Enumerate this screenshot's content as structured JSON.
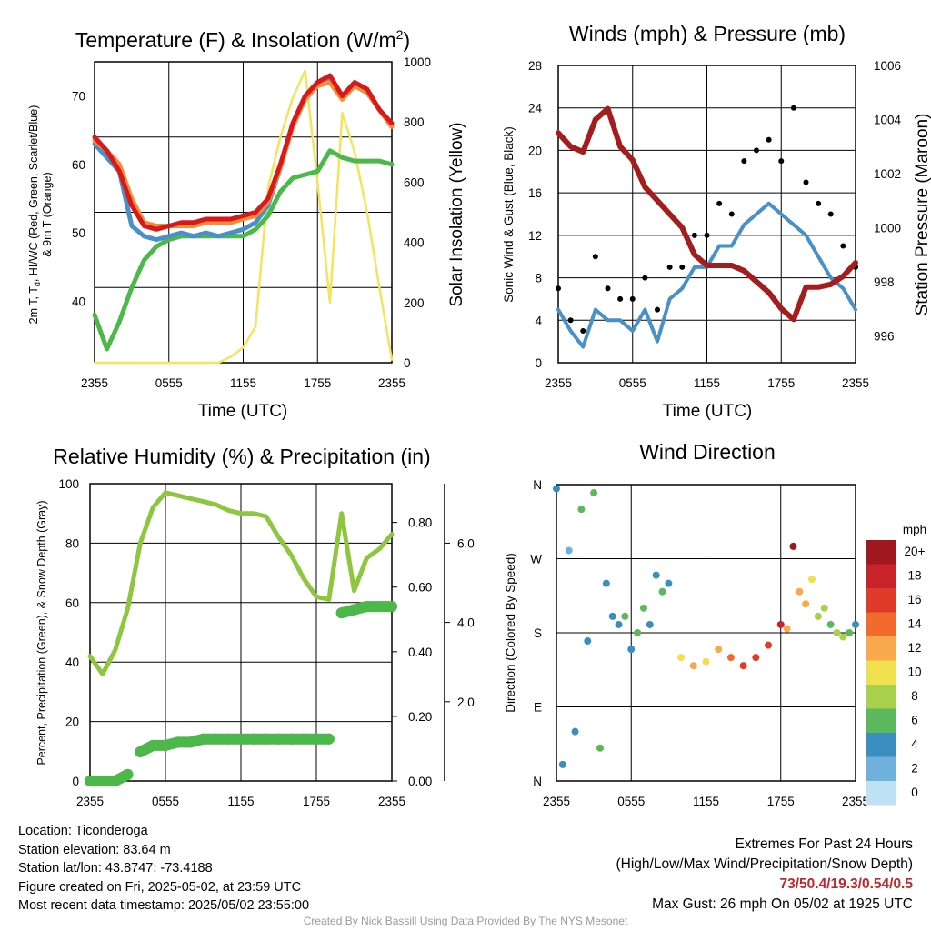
{
  "xticks": [
    "2355",
    "0555",
    "1155",
    "1755",
    "2355"
  ],
  "colors": {
    "red": "#d7191c",
    "orange": "#f38d3c",
    "blue": "#4a90c8",
    "green": "#4db84a",
    "yellow": "#f5e35a",
    "maroon": "#a31d1d",
    "black": "#000000",
    "rh_green": "#8ec63f",
    "precip_green": "#4db84a"
  },
  "chart_data": [
    {
      "type": "line",
      "title": "Temperature (F) & Insolation (W/m²)",
      "xlabel": "Time (UTC)",
      "ylabel": "2m T, Td, HI/WC (Red, Green, Scarlet/Blue) & 9m T (Orange)",
      "ylabel_line1": "2m T, T",
      "ylabel_sub": "d",
      "ylabel_line1_rest": ", HI/WC (Red, Green, Scarlet/Blue)",
      "ylabel_line2": "& 9m T (Orange)",
      "y2label": "Solar Insolation (Yellow)",
      "title_main": "Temperature (F) & Insolation (W/m",
      "title_sup": "2",
      "title_end": ")",
      "yticks": [
        "40",
        "50",
        "60",
        "70"
      ],
      "y2ticks": [
        "0",
        "200",
        "400",
        "600",
        "800",
        "1000"
      ],
      "ylim": [
        31,
        75
      ],
      "y2lim": [
        0,
        1000
      ],
      "x_hours": [
        0,
        1,
        2,
        3,
        4,
        5,
        6,
        7,
        8,
        9,
        10,
        11,
        12,
        13,
        14,
        15,
        16,
        17,
        18,
        19,
        20,
        21,
        22,
        23,
        24
      ],
      "series": [
        {
          "name": "2m T",
          "color_key": "red",
          "values": [
            64,
            62,
            59,
            54,
            51,
            50.5,
            51,
            51.5,
            51.5,
            52,
            52,
            52,
            52.5,
            53,
            55,
            60,
            66,
            70,
            72,
            73,
            70,
            72,
            71,
            68,
            66
          ]
        },
        {
          "name": "9m T",
          "color_key": "orange",
          "values": [
            63.5,
            62,
            60,
            55,
            51.5,
            51,
            51,
            51,
            51,
            51.5,
            51.5,
            51.5,
            52,
            52.5,
            54.5,
            59.5,
            65.5,
            69.5,
            71.5,
            72,
            69.5,
            71.5,
            70.5,
            68,
            65.5
          ]
        },
        {
          "name": "HI/WC",
          "color_key": "blue",
          "values": [
            63,
            61,
            59,
            51,
            49.5,
            49,
            49.5,
            50,
            49.5,
            50,
            49.5,
            50,
            50.5,
            51.5,
            54,
            59.5,
            66,
            70,
            72,
            72.5,
            70,
            71.5,
            70.5,
            68,
            65.5
          ]
        },
        {
          "name": "2m Td",
          "color_key": "green",
          "values": [
            38,
            33,
            37,
            42,
            46,
            48,
            49,
            49.5,
            49.5,
            49.5,
            49.5,
            49.5,
            49.5,
            50.5,
            52.5,
            56,
            58,
            58.5,
            59,
            62,
            61,
            60.5,
            60.5,
            60.5,
            60
          ]
        },
        {
          "name": "Solar Insolation",
          "axis": "y2",
          "color_key": "yellow",
          "values": [
            0,
            0,
            0,
            0,
            0,
            0,
            0,
            0,
            0,
            0,
            0,
            20,
            50,
            120,
            580,
            750,
            880,
            970,
            600,
            200,
            830,
            700,
            500,
            250,
            10
          ]
        }
      ]
    },
    {
      "type": "scatter",
      "title": "Winds (mph) & Pressure (mb)",
      "xlabel": "Time (UTC)",
      "ylabel": "Sonic Wind & Gust (Blue, Black)",
      "y2label": "Station Pressure (Maroon)",
      "yticks": [
        "0",
        "4",
        "8",
        "12",
        "16",
        "20",
        "24",
        "28"
      ],
      "y2ticks": [
        "996",
        "998",
        "1000",
        "1002",
        "1004",
        "1006"
      ],
      "ylim": [
        0,
        28
      ],
      "y2lim": [
        995,
        1006
      ],
      "x_hours": [
        0,
        1,
        2,
        3,
        4,
        5,
        6,
        7,
        8,
        9,
        10,
        11,
        12,
        13,
        14,
        15,
        16,
        17,
        18,
        19,
        20,
        21,
        22,
        23,
        24
      ],
      "series": [
        {
          "name": "Sonic Wind",
          "color_key": "blue",
          "values": [
            5,
            3,
            1.5,
            5,
            4,
            4,
            3,
            5,
            2,
            6,
            7,
            9,
            9,
            11,
            11,
            13,
            14,
            15,
            14,
            13,
            12,
            10,
            8,
            7,
            5
          ]
        },
        {
          "name": "Gust",
          "color_key": "black",
          "values": [
            7,
            4,
            3,
            10,
            7,
            6,
            6,
            8,
            5,
            9,
            9,
            12,
            12,
            15,
            14,
            19,
            20,
            21,
            19,
            24,
            17,
            15,
            14,
            11,
            9
          ]
        },
        {
          "name": "Station Pressure",
          "axis": "y2",
          "color_key": "maroon",
          "values": [
            1003.5,
            1003,
            1002.8,
            1004,
            1004.4,
            1003,
            1002.5,
            1001.5,
            1001,
            1000.5,
            1000,
            999,
            998.6,
            998.6,
            998.6,
            998.4,
            998,
            997.6,
            997,
            996.6,
            997.8,
            997.8,
            997.9,
            998.2,
            998.7
          ]
        }
      ]
    },
    {
      "type": "line",
      "title": "Relative Humidity (%) & Precipitation (in)",
      "ylabel": "Percent, Precipitation (Green), & Snow Depth (Gray)",
      "yticks": [
        "0",
        "20",
        "40",
        "60",
        "80",
        "100"
      ],
      "y2ticks": [
        "0.00",
        "0.20",
        "0.40",
        "0.60",
        "0.80"
      ],
      "y3ticks": [
        "2.0",
        "4.0",
        "6.0"
      ],
      "ylim": [
        0,
        100
      ],
      "y2lim": [
        0,
        0.92
      ],
      "x_hours": [
        0,
        1,
        2,
        3,
        4,
        5,
        6,
        7,
        8,
        9,
        10,
        11,
        12,
        13,
        14,
        15,
        16,
        17,
        18,
        19,
        20,
        21,
        22,
        23,
        24
      ],
      "series": [
        {
          "name": "Relative Humidity",
          "color_key": "rh_green",
          "values": [
            42,
            36,
            44,
            58,
            80,
            92,
            97,
            96,
            95,
            94,
            93,
            91,
            90,
            90,
            89,
            82,
            76,
            68,
            62,
            61,
            90,
            64,
            75,
            78,
            83
          ]
        },
        {
          "name": "Precipitation",
          "axis": "y2",
          "color_key": "precip_green",
          "values": [
            0,
            0,
            0,
            0.02,
            0.09,
            0.11,
            0.11,
            0.12,
            0.12,
            0.13,
            0.13,
            0.13,
            0.13,
            0.13,
            0.13,
            0.13,
            0.13,
            0.13,
            0.13,
            0.13,
            0.52,
            0.53,
            0.54,
            0.54,
            0.54
          ]
        }
      ]
    },
    {
      "type": "scatter",
      "title": "Wind Direction",
      "ylabel": "Direction (Colored By Speed)",
      "ytick_labels": [
        "N",
        "E",
        "S",
        "W",
        "N"
      ],
      "ylim": [
        0,
        360
      ],
      "legend_title": "mph",
      "legend_labels": [
        "20+",
        "18",
        "16",
        "14",
        "12",
        "10",
        "8",
        "6",
        "4",
        "2",
        "0"
      ],
      "legend_colors": [
        "#a2171d",
        "#c8222a",
        "#e03a2a",
        "#f26a2e",
        "#f9a94b",
        "#f0df4e",
        "#a9d04a",
        "#5cb85c",
        "#3a8fc0",
        "#6fb0dd",
        "#bfe1f4"
      ],
      "x_hours": [
        0,
        0.5,
        1,
        1.5,
        2,
        2.5,
        3,
        3.5,
        4,
        4.5,
        5,
        5.5,
        6,
        6.5,
        7,
        7.5,
        8,
        8.5,
        9,
        10,
        11,
        12,
        13,
        14,
        15,
        16,
        17,
        18,
        18.5,
        19,
        19.5,
        20,
        20.5,
        21,
        21.5,
        22,
        22.5,
        23,
        23.5,
        24
      ],
      "values": [
        355,
        20,
        280,
        60,
        330,
        170,
        350,
        40,
        240,
        200,
        190,
        200,
        160,
        180,
        210,
        190,
        250,
        230,
        240,
        150,
        140,
        145,
        160,
        150,
        140,
        150,
        165,
        190,
        185,
        285,
        230,
        215,
        245,
        200,
        210,
        190,
        180,
        175,
        180,
        190
      ],
      "speeds": [
        3,
        4,
        1,
        4,
        6,
        3,
        6,
        5,
        4,
        4,
        3,
        5,
        4,
        6,
        5,
        3,
        4,
        5,
        4,
        9,
        11,
        10,
        12,
        14,
        15,
        15,
        16,
        17,
        12,
        19,
        12,
        11,
        9,
        8,
        7,
        6,
        7,
        8,
        5,
        4
      ]
    }
  ],
  "info": {
    "location": "Location: Ticonderoga",
    "elevation": "Station elevation: 83.64 m",
    "latlon": "Station lat/lon: 43.8747; -73.4188",
    "created": "Figure created on Fri, 2025-05-02, at 23:59 UTC",
    "recent": "Most recent data timestamp: 2025/05/02 23:55:00"
  },
  "extremes": {
    "line1": "Extremes For Past 24 Hours",
    "line2": "(High/Low/Max Wind/Precipitation/Snow Depth)",
    "values": "73/50.4/19.3/0.54/0.5",
    "gust": "Max Gust: 26 mph On 05/02 at 1925 UTC"
  },
  "credit": "Created By Nick Bassill Using Data Provided By The NYS Mesonet"
}
